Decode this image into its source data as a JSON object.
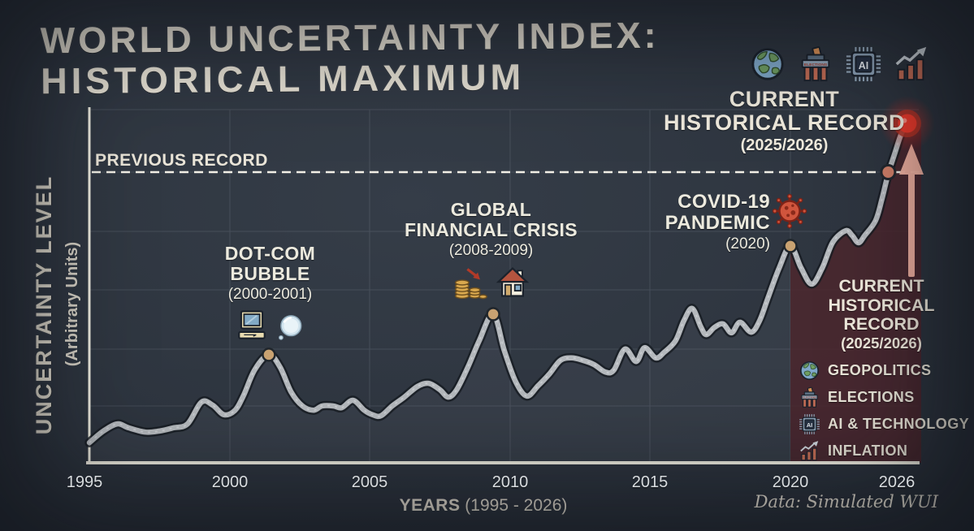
{
  "title": {
    "line1": "WORLD UNCERTAINTY INDEX:",
    "line2": "HISTORICAL MAXIMUM"
  },
  "header_icons": [
    "globe",
    "elections",
    "ai-chip",
    "inflation-chart"
  ],
  "record_callout": {
    "line1": "CURRENT",
    "line2": "HISTORICAL RECORD",
    "line3": "(2025/2026)"
  },
  "previous_record_label": "PREVIOUS RECORD",
  "y_axis": {
    "label": "UNCERTAINTY LEVEL",
    "sublabel": "(Arbitrary Units)"
  },
  "x_axis": {
    "label_bold": "YEARS",
    "label_rest": " (1995 - 2026)",
    "ticks": [
      "1995",
      "2000",
      "2005",
      "2010",
      "2015",
      "2020",
      "2026"
    ]
  },
  "annotations": {
    "dotcom": {
      "line1": "DOT-COM",
      "line2": "BUBBLE",
      "sub": "(2000-2001)",
      "icons": [
        "computer",
        "bubble"
      ]
    },
    "gfc": {
      "line1": "GLOBAL",
      "line2": "FINANCIAL CRISIS",
      "sub": "(2008-2009)",
      "icons": [
        "coins",
        "house"
      ]
    },
    "covid": {
      "line1": "COVID-19",
      "line2": "PANDEMIC",
      "sub": "(2020)",
      "icon": "virus"
    }
  },
  "side_record": {
    "line1": "CURRENT",
    "line2": "HISTORICAL",
    "line3": "RECORD",
    "line4": "(2025/2026)"
  },
  "legend": [
    {
      "icon": "globe",
      "label": "GEOPOLITICS"
    },
    {
      "icon": "elections",
      "label": "ELECTIONS"
    },
    {
      "icon": "ai-chip",
      "label": "AI & TECHNOLOGY"
    },
    {
      "icon": "inflation-chart",
      "label": "INFLATION"
    }
  ],
  "footer": {
    "source": "Data: Simulated WUI"
  },
  "colors": {
    "background": "#2b323c",
    "chalk": "#e7e2d6",
    "line": "#b4b8bc",
    "line_shadow": "#161b22",
    "record_dot": "#e8392b",
    "arrow": "#f1b2a1",
    "shade": "#4b252c",
    "peak_dot": "#c9a271",
    "crossing_dot": "#cf7f68",
    "dashed_line": "#f2efe6",
    "grid": "#aab4bf"
  },
  "chart_data": {
    "type": "line",
    "title": "World Uncertainty Index: Historical Maximum",
    "xlabel": "YEARS (1995 - 2026)",
    "ylabel": "UNCERTAINTY LEVEL (Arbitrary Units)",
    "x_ticks": [
      1995,
      2000,
      2005,
      2010,
      2015,
      2020,
      2026
    ],
    "xlim": [
      1995,
      2026
    ],
    "ylim": [
      0,
      100
    ],
    "grid": true,
    "legend_position": "right",
    "previous_record_level": 82.3,
    "shaded_region": {
      "from_year": 2020,
      "to_year": 2026,
      "meaning": "Current historical record period"
    },
    "series": [
      {
        "name": "Simulated WUI",
        "points": [
          [
            1995.0,
            5.7
          ],
          [
            1995.5,
            9.0
          ],
          [
            1996.0,
            11.0
          ],
          [
            1996.4,
            9.9
          ],
          [
            1997.0,
            8.7
          ],
          [
            1997.5,
            9.0
          ],
          [
            1998.0,
            9.9
          ],
          [
            1998.5,
            11.0
          ],
          [
            1999.0,
            17.2
          ],
          [
            1999.4,
            16.3
          ],
          [
            1999.8,
            13.6
          ],
          [
            2000.2,
            14.9
          ],
          [
            2000.5,
            19.1
          ],
          [
            2000.9,
            26.4
          ],
          [
            2001.4,
            30.6
          ],
          [
            2001.8,
            27.1
          ],
          [
            2002.2,
            20.0
          ],
          [
            2002.6,
            16.1
          ],
          [
            2003.0,
            14.9
          ],
          [
            2003.3,
            16.1
          ],
          [
            2003.7,
            16.1
          ],
          [
            2004.0,
            15.6
          ],
          [
            2004.4,
            17.7
          ],
          [
            2004.8,
            14.9
          ],
          [
            2005.1,
            13.6
          ],
          [
            2005.4,
            13.3
          ],
          [
            2005.8,
            16.1
          ],
          [
            2006.2,
            18.4
          ],
          [
            2006.7,
            21.6
          ],
          [
            2007.1,
            22.5
          ],
          [
            2007.5,
            20.7
          ],
          [
            2007.8,
            18.6
          ],
          [
            2008.1,
            20.7
          ],
          [
            2008.5,
            27.1
          ],
          [
            2008.9,
            34.5
          ],
          [
            2009.4,
            42.1
          ],
          [
            2009.8,
            31.7
          ],
          [
            2010.2,
            23.0
          ],
          [
            2010.6,
            18.9
          ],
          [
            2011.0,
            21.8
          ],
          [
            2011.4,
            25.1
          ],
          [
            2011.8,
            29.0
          ],
          [
            2012.2,
            29.7
          ],
          [
            2012.6,
            29.0
          ],
          [
            2013.0,
            27.8
          ],
          [
            2013.4,
            25.7
          ],
          [
            2013.7,
            26.2
          ],
          [
            2014.1,
            32.2
          ],
          [
            2014.5,
            28.7
          ],
          [
            2014.8,
            32.6
          ],
          [
            2015.2,
            29.7
          ],
          [
            2015.5,
            31.3
          ],
          [
            2015.9,
            34.5
          ],
          [
            2016.2,
            40.2
          ],
          [
            2016.5,
            43.7
          ],
          [
            2016.8,
            38.6
          ],
          [
            2017.0,
            36.3
          ],
          [
            2017.3,
            38.4
          ],
          [
            2017.6,
            39.3
          ],
          [
            2017.9,
            36.8
          ],
          [
            2018.2,
            39.8
          ],
          [
            2018.6,
            37.0
          ],
          [
            2018.9,
            40.2
          ],
          [
            2019.2,
            46.7
          ],
          [
            2019.6,
            55.2
          ],
          [
            2020.0,
            61.4
          ],
          [
            2020.5,
            55.2
          ],
          [
            2021.0,
            50.6
          ],
          [
            2021.5,
            55.2
          ],
          [
            2022.0,
            62.5
          ],
          [
            2022.6,
            65.7
          ],
          [
            2022.9,
            64.4
          ],
          [
            2023.2,
            62.3
          ],
          [
            2023.5,
            64.4
          ],
          [
            2024.0,
            68.5
          ],
          [
            2024.3,
            74.5
          ],
          [
            2024.6,
            81.8
          ],
          [
            2024.9,
            87.4
          ],
          [
            2025.2,
            92.9
          ],
          [
            2025.5,
            96.1
          ]
        ]
      }
    ],
    "markers": [
      {
        "year": 2001.4,
        "value": 30.6,
        "event": "Dot-com bubble peak",
        "style": "tan-dot"
      },
      {
        "year": 2009.4,
        "value": 42.1,
        "event": "Global financial crisis peak",
        "style": "tan-dot"
      },
      {
        "year": 2020.0,
        "value": 61.4,
        "event": "COVID-19 pandemic peak",
        "style": "tan-dot"
      },
      {
        "year": 2024.6,
        "value": 82.3,
        "event": "Previous record crossed",
        "style": "salmon-dot"
      },
      {
        "year": 2025.5,
        "value": 96.1,
        "event": "Current historical record",
        "style": "red-glow-dot"
      }
    ]
  }
}
